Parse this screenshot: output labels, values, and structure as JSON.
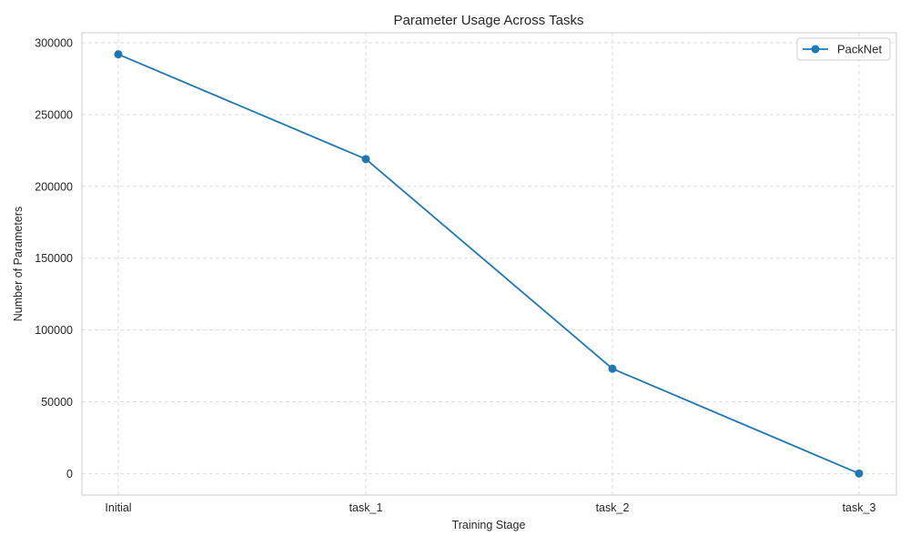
{
  "chart_data": {
    "type": "line",
    "title": "Parameter Usage Across Tasks",
    "xlabel": "Training Stage",
    "ylabel": "Number of Parameters",
    "categories": [
      "Initial",
      "task_1",
      "task_2",
      "task_3"
    ],
    "series": [
      {
        "name": "PackNet",
        "values": [
          292000,
          219000,
          73000,
          0
        ],
        "color": "#1f77b4",
        "marker": "circle"
      }
    ],
    "ylim": [
      -15000,
      307000
    ],
    "yticks": [
      0,
      50000,
      100000,
      150000,
      200000,
      250000,
      300000
    ],
    "ytick_labels": [
      "0",
      "50000",
      "100000",
      "150000",
      "200000",
      "250000",
      "300000"
    ],
    "grid": true,
    "grid_style": "dashed",
    "legend": "top-right"
  }
}
